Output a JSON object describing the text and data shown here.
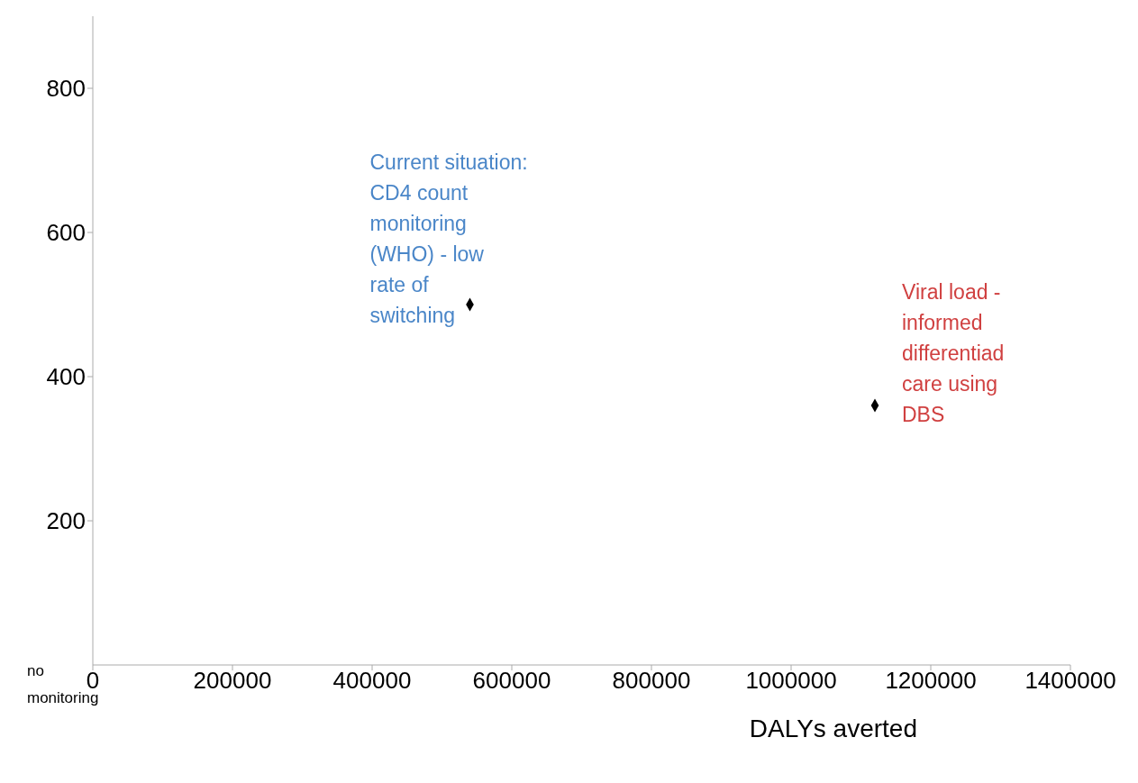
{
  "chart_data": {
    "type": "scatter",
    "xlabel": "DALYs averted",
    "xlim": [
      0,
      1400000
    ],
    "xticks": [
      0,
      200000,
      400000,
      600000,
      800000,
      1000000,
      1200000,
      1400000
    ],
    "ylim": [
      0,
      900
    ],
    "yticks": [
      200,
      400,
      600,
      800
    ],
    "series": [
      {
        "color": "#000000",
        "x": [
          540000,
          1120000
        ],
        "values": [
          500,
          360
        ]
      }
    ],
    "marker": "diamond",
    "grid": false,
    "legend": false,
    "annotations": [
      {
        "text": "Current situation:\nCD4 count\nmonitoring\n(WHO) - low\nrate of\nswitching",
        "x": 540000,
        "y": 500
      },
      {
        "text": "Viral load -\ninformed\ndifferentiad\ncare using\nDBS",
        "x": 1120000,
        "y": 360
      },
      "no monitoring"
    ]
  }
}
